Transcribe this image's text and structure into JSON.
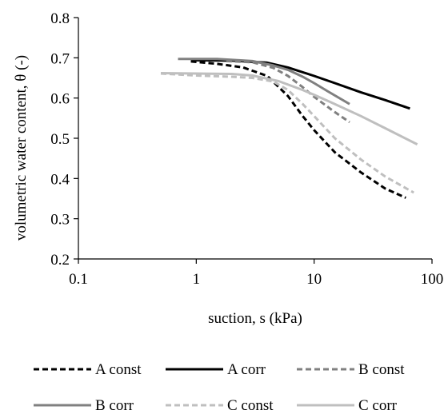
{
  "chart_data": {
    "type": "line",
    "title": "",
    "xlabel": "suction, s (kPa)",
    "ylabel": "volumetric water content, θ (-)",
    "x_scale": "log",
    "xlim": [
      0.1,
      100
    ],
    "ylim": [
      0.2,
      0.8
    ],
    "x_ticks": [
      0.1,
      1,
      10,
      100
    ],
    "x_tick_labels": [
      "0.1",
      "1",
      "10",
      "100"
    ],
    "y_ticks": [
      0.2,
      0.3,
      0.4,
      0.5,
      0.6,
      0.7,
      0.8
    ],
    "y_tick_labels": [
      "0.2",
      "0.3",
      "0.4",
      "0.5",
      "0.6",
      "0.7",
      "0.8"
    ],
    "grid": false,
    "legend_position": "bottom",
    "series": [
      {
        "name": "A const",
        "color": "#000000",
        "dash": "dashed",
        "x": [
          0.9,
          1.5,
          2.5,
          4,
          6,
          8,
          10,
          15,
          25,
          40,
          60
        ],
        "y": [
          0.691,
          0.685,
          0.676,
          0.655,
          0.605,
          0.555,
          0.52,
          0.465,
          0.415,
          0.375,
          0.352
        ]
      },
      {
        "name": "A corr",
        "color": "#000000",
        "dash": "solid",
        "x": [
          0.9,
          2,
          4,
          6,
          10,
          15,
          25,
          40,
          65
        ],
        "y": [
          0.694,
          0.693,
          0.688,
          0.676,
          0.655,
          0.637,
          0.614,
          0.595,
          0.574
        ]
      },
      {
        "name": "B const",
        "color": "#808080",
        "dash": "dashed",
        "x": [
          1.8,
          3,
          4.5,
          6,
          8,
          10,
          15,
          20
        ],
        "y": [
          0.692,
          0.689,
          0.675,
          0.655,
          0.627,
          0.603,
          0.565,
          0.54
        ]
      },
      {
        "name": "B corr",
        "color": "#808080",
        "dash": "solid",
        "x": [
          0.7,
          1.5,
          3,
          4.5,
          6,
          8,
          10,
          13,
          20
        ],
        "y": [
          0.697,
          0.697,
          0.692,
          0.681,
          0.67,
          0.653,
          0.637,
          0.617,
          0.585
        ]
      },
      {
        "name": "C const",
        "color": "#bfbfbf",
        "dash": "dashed",
        "x": [
          0.5,
          1,
          2,
          3,
          4.5,
          6,
          8,
          10,
          15,
          25,
          40,
          70
        ],
        "y": [
          0.661,
          0.656,
          0.653,
          0.65,
          0.641,
          0.62,
          0.585,
          0.555,
          0.5,
          0.447,
          0.405,
          0.365
        ]
      },
      {
        "name": "C corr",
        "color": "#bfbfbf",
        "dash": "solid",
        "x": [
          0.5,
          1,
          2,
          3,
          5,
          8,
          10,
          15,
          25,
          40,
          75
        ],
        "y": [
          0.662,
          0.661,
          0.66,
          0.656,
          0.642,
          0.62,
          0.608,
          0.585,
          0.555,
          0.525,
          0.485
        ]
      }
    ]
  }
}
